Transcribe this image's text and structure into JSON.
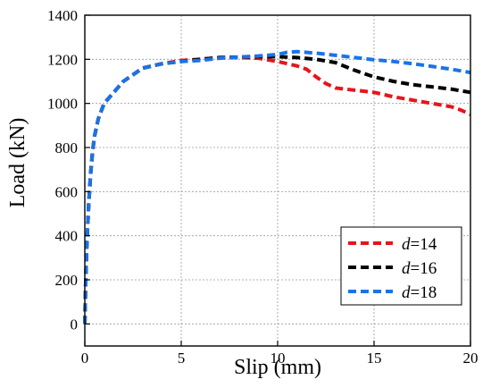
{
  "chart_data": {
    "type": "line",
    "xlabel": "Slip (mm)",
    "ylabel": "Load (kN)",
    "xlim": [
      0,
      20
    ],
    "ylim": [
      -100,
      1400
    ],
    "xticks": [
      0,
      5,
      10,
      15,
      20
    ],
    "yticks": [
      0,
      200,
      400,
      600,
      800,
      1000,
      1200,
      1400
    ],
    "grid": true,
    "legend_position": "bottom-right",
    "series": [
      {
        "name": "d=14",
        "name_var": "d",
        "name_value": "=14",
        "color": "#e8141b",
        "x": [
          0,
          0.05,
          0.1,
          0.2,
          0.3,
          0.4,
          0.5,
          0.7,
          1.0,
          1.5,
          2.0,
          3.0,
          4.0,
          5.0,
          6.0,
          7.0,
          8.0,
          9.0,
          10.0,
          10.5,
          11.0,
          11.5,
          12.0,
          12.5,
          13.0,
          14.0,
          15.0,
          16.0,
          17.0,
          18.0,
          19.0,
          19.5,
          20.0
        ],
        "y": [
          0,
          200,
          350,
          540,
          680,
          780,
          850,
          930,
          1000,
          1050,
          1100,
          1160,
          1180,
          1195,
          1200,
          1208,
          1208,
          1205,
          1190,
          1180,
          1170,
          1155,
          1120,
          1090,
          1070,
          1060,
          1050,
          1030,
          1015,
          1000,
          985,
          970,
          950
        ]
      },
      {
        "name": "d=16",
        "name_var": "d",
        "name_value": "=16",
        "color": "#000000",
        "x": [
          0,
          0.05,
          0.1,
          0.2,
          0.3,
          0.4,
          0.5,
          0.7,
          1.0,
          1.5,
          2.0,
          3.0,
          4.0,
          5.0,
          6.0,
          7.0,
          8.0,
          9.0,
          10.0,
          10.5,
          11.0,
          12.0,
          13.0,
          14.0,
          15.0,
          16.0,
          17.0,
          18.0,
          19.0,
          20.0
        ],
        "y": [
          0,
          200,
          350,
          540,
          680,
          780,
          850,
          930,
          1000,
          1050,
          1100,
          1160,
          1180,
          1190,
          1200,
          1208,
          1210,
          1212,
          1212,
          1210,
          1208,
          1200,
          1185,
          1150,
          1120,
          1100,
          1085,
          1075,
          1065,
          1050
        ]
      },
      {
        "name": "d=18",
        "name_var": "d",
        "name_value": "=18",
        "color": "#1a73e8",
        "x": [
          0,
          0.05,
          0.1,
          0.2,
          0.3,
          0.4,
          0.5,
          0.7,
          1.0,
          1.5,
          2.0,
          3.0,
          4.0,
          5.0,
          6.0,
          7.0,
          8.0,
          9.0,
          10.0,
          10.5,
          11.0,
          12.0,
          13.0,
          14.0,
          15.0,
          16.0,
          17.0,
          18.0,
          19.0,
          20.0
        ],
        "y": [
          0,
          200,
          350,
          540,
          680,
          780,
          850,
          930,
          1000,
          1050,
          1100,
          1160,
          1180,
          1190,
          1195,
          1205,
          1210,
          1215,
          1222,
          1232,
          1235,
          1228,
          1218,
          1208,
          1198,
          1190,
          1180,
          1168,
          1155,
          1140
        ]
      }
    ]
  }
}
